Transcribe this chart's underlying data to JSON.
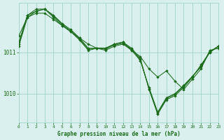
{
  "title": "Graphe pression niveau de la mer (hPa)",
  "background_color": "#daf0ee",
  "grid_color": "#a8d8cc",
  "line_color": "#1a6b1a",
  "marker_color": "#1a6b1a",
  "xlim": [
    0,
    23
  ],
  "ylim": [
    1009.3,
    1012.2
  ],
  "yticks": [
    1010,
    1011
  ],
  "xticks": [
    0,
    1,
    2,
    3,
    4,
    5,
    6,
    7,
    8,
    9,
    10,
    11,
    12,
    13,
    14,
    15,
    16,
    17,
    18,
    19,
    20,
    21,
    22,
    23
  ],
  "series": [
    [
      1011.4,
      1011.85,
      1011.95,
      1011.95,
      1011.8,
      1011.65,
      1011.5,
      1011.35,
      1011.2,
      1011.1,
      1011.05,
      1011.15,
      1011.2,
      1011.05,
      1010.9,
      1010.6,
      1010.4,
      1010.55,
      1010.3,
      1010.1,
      1010.35,
      1010.6,
      1011.05,
      1011.1
    ],
    [
      1011.2,
      1011.9,
      1012.0,
      1012.05,
      1011.85,
      1011.65,
      1011.5,
      1011.3,
      1011.05,
      1011.1,
      1011.1,
      1011.2,
      1011.25,
      1011.1,
      1010.85,
      1010.1,
      1009.5,
      1009.85,
      1009.95,
      1010.15,
      1010.4,
      1010.7,
      1011.0,
      1011.15
    ],
    [
      1011.15,
      1011.85,
      1012.0,
      1012.05,
      1011.9,
      1011.7,
      1011.55,
      1011.35,
      1011.1,
      1011.1,
      1011.1,
      1011.2,
      1011.25,
      1011.05,
      1010.8,
      1010.15,
      1009.55,
      1009.9,
      1010.0,
      1010.2,
      1010.42,
      1010.65,
      1011.0,
      1011.15
    ],
    [
      1011.25,
      1011.9,
      1012.05,
      1012.05,
      1011.88,
      1011.68,
      1011.52,
      1011.32,
      1011.08,
      1011.1,
      1011.08,
      1011.18,
      1011.22,
      1011.08,
      1010.82,
      1010.12,
      1009.52,
      1009.88,
      1009.98,
      1010.18,
      1010.41,
      1010.67,
      1011.02,
      1011.15
    ]
  ]
}
